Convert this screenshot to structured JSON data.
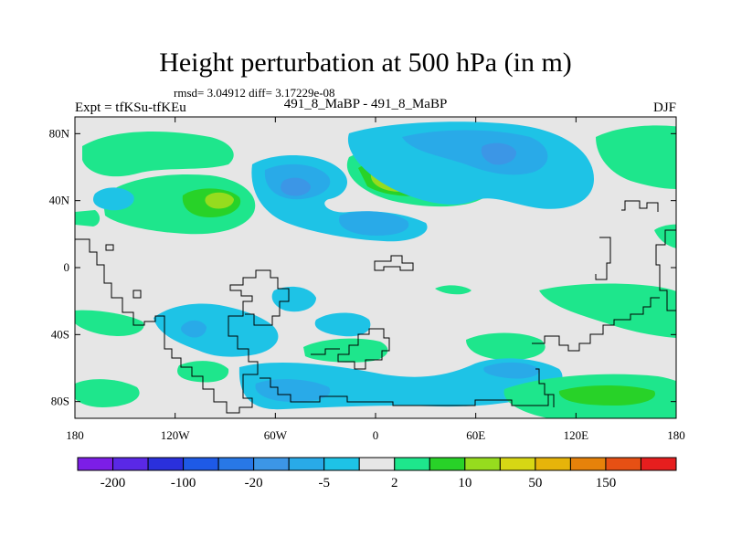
{
  "title": "Height perturbation at 500 hPa (in m)",
  "stats": "rmsd= 3.04912 diff= 3.17229e-08",
  "expt": "Expt = tfKSu-tfKEu",
  "runs": "491_8_MaBP - 491_8_MaBP",
  "season": "DJF",
  "map_data": {
    "variable": "500 hPa height perturbation",
    "units": "m",
    "lon_range": [
      -180,
      180
    ],
    "lat_range": [
      -90,
      90
    ],
    "x_ticks": [
      {
        "value": -180,
        "label": "180"
      },
      {
        "value": -120,
        "label": "120W"
      },
      {
        "value": -60,
        "label": "60W"
      },
      {
        "value": 0,
        "label": "0"
      },
      {
        "value": 60,
        "label": "60E"
      },
      {
        "value": 120,
        "label": "120E"
      },
      {
        "value": 180,
        "label": "180"
      }
    ],
    "y_ticks": [
      {
        "value": 80,
        "label": "80N"
      },
      {
        "value": 40,
        "label": "40N"
      },
      {
        "value": 0,
        "label": "0"
      },
      {
        "value": -40,
        "label": "40S"
      },
      {
        "value": -80,
        "label": "80S"
      }
    ]
  },
  "colorbar": {
    "colors": [
      "#7c1ee6",
      "#5a28e6",
      "#2a30dc",
      "#1e5ae6",
      "#2878e6",
      "#3c96e6",
      "#29aae8",
      "#1ec3e6",
      "#e6e6e6",
      "#1ee68c",
      "#28d228",
      "#96dc1e",
      "#d7d714",
      "#e6b40a",
      "#e6820a",
      "#e65014",
      "#e61e1e"
    ],
    "labels": [
      "-200",
      "-100",
      "-20",
      "-5",
      "2",
      "10",
      "50",
      "150"
    ],
    "fill_colors": {
      "neutral": "#e6e6e6",
      "green": "#1ee68c",
      "bright_green": "#28d228",
      "yellow_green": "#96dc1e",
      "cyan": "#1ec3e6",
      "light_blue": "#29aae8",
      "blue": "#3c96e6",
      "deep_blue": "#2878e6"
    }
  }
}
